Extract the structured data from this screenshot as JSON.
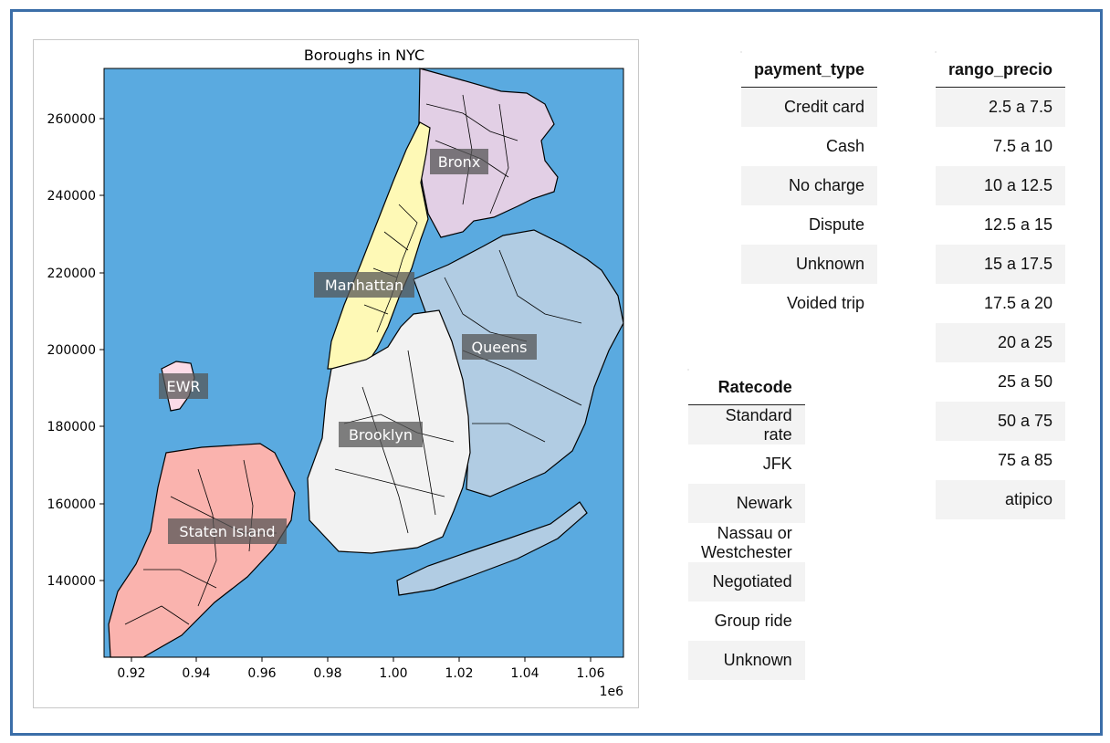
{
  "map": {
    "title": "Boroughs in NYC",
    "x_ticks": [
      "0.92",
      "0.94",
      "0.96",
      "0.98",
      "1.00",
      "1.02",
      "1.04",
      "1.06"
    ],
    "x_exponent": "1e6",
    "y_ticks": [
      "260000",
      "240000",
      "220000",
      "200000",
      "180000",
      "160000",
      "140000"
    ],
    "water_color": "#5aaae0",
    "labels": {
      "bronx": "Bronx",
      "manhattan": "Manhattan",
      "queens": "Queens",
      "ewr": "EWR",
      "brooklyn": "Brooklyn",
      "staten_island": "Staten Island"
    },
    "colors": {
      "bronx": "#e2cfe5",
      "manhattan": "#fef9b6",
      "queens": "#b1cce3",
      "ewr": "#fcdbe7",
      "brooklyn": "#f2f2f2",
      "staten_island": "#fab3ae"
    }
  },
  "payment_table": {
    "header": "payment_type",
    "rows": [
      "Credit card",
      "Cash",
      "No charge",
      "Dispute",
      "Unknown",
      "Voided trip"
    ]
  },
  "ratecode_table": {
    "header": "Ratecode",
    "rows": [
      "Standard rate",
      "JFK",
      "Newark",
      "Nassau or Westchester",
      "Negotiated",
      "Group ride",
      "Unknown"
    ]
  },
  "precio_table": {
    "header": "rango_precio",
    "rows": [
      "2.5 a 7.5",
      "7.5 a 10",
      "10 a 12.5",
      "12.5 a 15",
      "15 a 17.5",
      "17.5 a 20",
      "20 a 25",
      "25 a 50",
      "50 a 75",
      "75 a 85",
      "atipico"
    ]
  }
}
